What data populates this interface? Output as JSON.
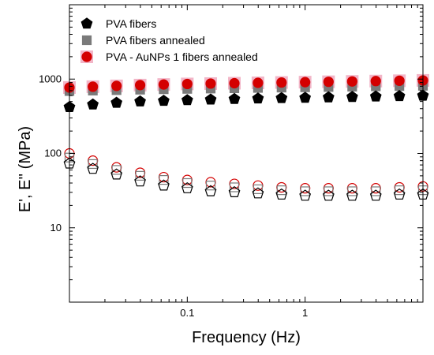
{
  "chart_data": {
    "type": "scatter",
    "xlabel": "Frequency (Hz)",
    "ylabel": "E', E'' (MPa)",
    "xscale": "log",
    "yscale": "log",
    "xlim": [
      0.01,
      10
    ],
    "ylim": [
      1,
      10000
    ],
    "x_ticks": [
      {
        "value": 0.1,
        "label": "0.1"
      },
      {
        "value": 1,
        "label": "1"
      }
    ],
    "y_ticks": [
      {
        "value": 10,
        "label": "10"
      },
      {
        "value": 100,
        "label": "100"
      },
      {
        "value": 1000,
        "label": "1000"
      }
    ],
    "grid": false,
    "legend_position": "top-left",
    "x": [
      0.01,
      0.0158,
      0.0251,
      0.0398,
      0.0631,
      0.1,
      0.158,
      0.251,
      0.398,
      0.631,
      1,
      1.58,
      2.51,
      3.98,
      6.31,
      10
    ],
    "series": [
      {
        "name": "PVA fibers",
        "marker": "pentagon",
        "color": "#000000",
        "storage_modulus": [
          420,
          455,
          480,
          500,
          510,
          520,
          530,
          540,
          548,
          555,
          560,
          568,
          575,
          583,
          590,
          598
        ],
        "loss_modulus": [
          73,
          62,
          52,
          42,
          37,
          34,
          31,
          30,
          29,
          28,
          27,
          27,
          27,
          27,
          28,
          28
        ]
      },
      {
        "name": "PVA fibers annealed",
        "marker": "square",
        "color": "#7a7a7a",
        "storage_modulus": [
          690,
          700,
          710,
          720,
          730,
          738,
          745,
          752,
          760,
          768,
          775,
          782,
          790,
          798,
          806,
          812
        ],
        "loss_modulus": [
          88,
          72,
          60,
          50,
          44,
          40,
          37,
          35,
          33,
          32,
          31,
          31,
          31,
          31,
          32,
          32
        ]
      },
      {
        "name": "PVA - AuNPs 1 fibers annealed",
        "marker": "circle",
        "color": "#d40000",
        "halo_color": "#f2b6c8",
        "storage_modulus": [
          770,
          790,
          810,
          830,
          845,
          860,
          870,
          880,
          890,
          900,
          910,
          920,
          930,
          940,
          950,
          960
        ],
        "loss_modulus": [
          100,
          80,
          65,
          55,
          48,
          44,
          41,
          39,
          37,
          35,
          34,
          34,
          34,
          34,
          35,
          36
        ]
      }
    ]
  }
}
